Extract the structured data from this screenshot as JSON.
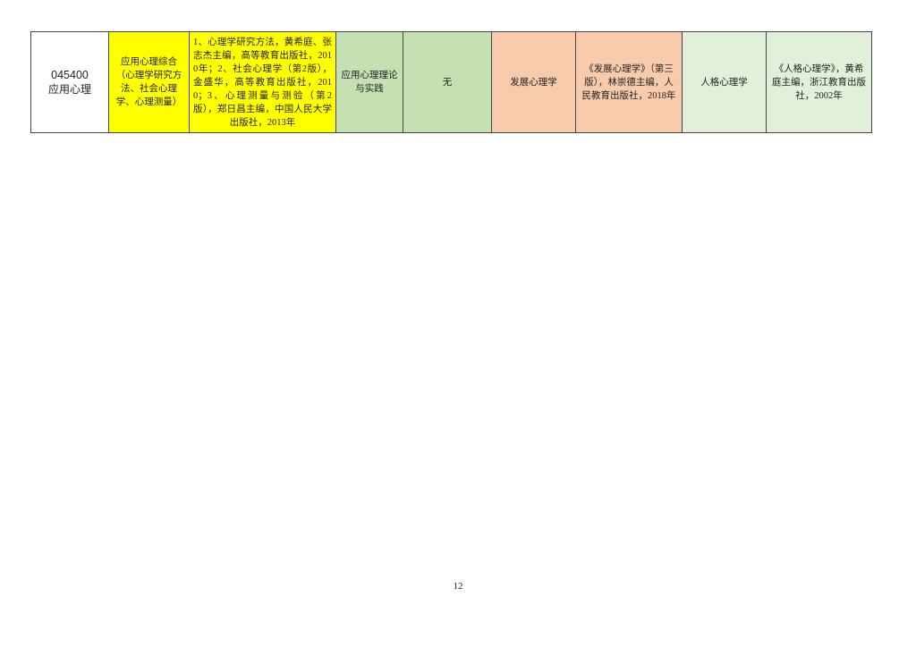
{
  "table": {
    "row": {
      "major_code": "045400",
      "major_name": "应用心理",
      "exam_subject": "应用心理综合（心理学研究方法、社会心理学、心理测量）",
      "exam_references": "1、心理学研究方法，黄希庭、张志杰主编，高等教育出版社，2010年；2、社会心理学（第2版），金盛华，高等教育出版社，2010；3、心理测量与测验（第2版），郑日昌主编，中国人民大学出版社，2013年",
      "second_subject": "应用心理理论与实践",
      "second_references": "无",
      "retest_subject": "发展心理学",
      "retest_references": "《发展心理学》（第三版），林崇德主编，人民教育出版社，2018年",
      "extra_subject": "人格心理学",
      "extra_references": "《人格心理学》，黄希庭主编，浙江教育出版社，2002年"
    },
    "colors": {
      "yellow": "#ffff00",
      "green": "#c5e0b3",
      "peach": "#f8cbad",
      "light_green": "#e2efd9"
    }
  },
  "page_number": "12"
}
